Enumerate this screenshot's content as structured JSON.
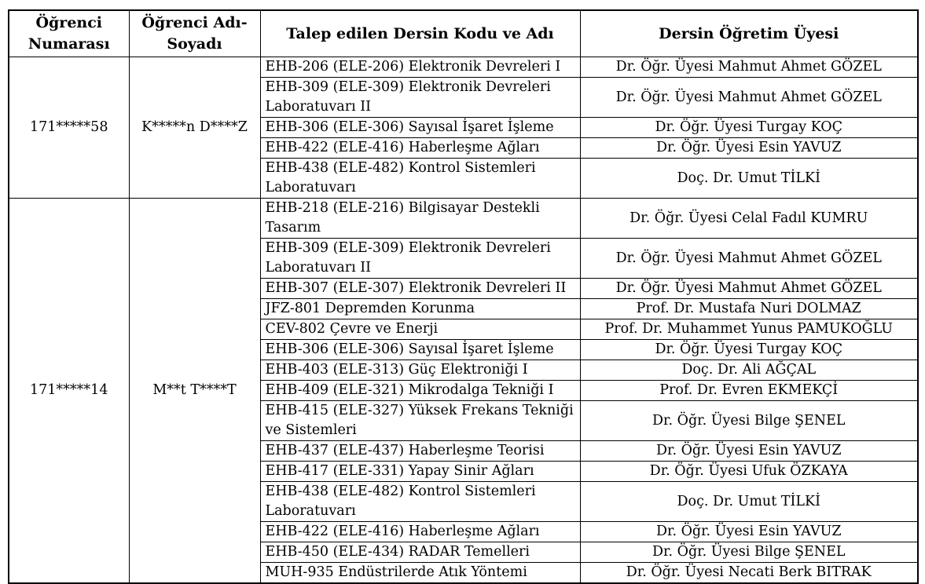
{
  "colors": {
    "border": "#000000",
    "text": "#000000",
    "background": "#ffffff"
  },
  "table": {
    "headers": [
      "Öğrenci Numarası",
      "Öğrenci Adı-Soyadı",
      "Talep edilen Dersin Kodu ve Adı",
      "Dersin Öğretim Üyesi"
    ],
    "students": [
      {
        "number": "171*****58",
        "name": "K*****n D****Z",
        "requests": [
          {
            "course": "EHB-206 (ELE-206) Elektronik Devreleri I",
            "instructor": "Dr. Öğr. Üyesi Mahmut Ahmet GÖZEL"
          },
          {
            "course": "EHB-309 (ELE-309) Elektronik Devreleri Laboratuvarı II",
            "instructor": "Dr. Öğr. Üyesi Mahmut Ahmet GÖZEL"
          },
          {
            "course": "EHB-306 (ELE-306) Sayısal İşaret İşleme",
            "instructor": "Dr. Öğr. Üyesi Turgay KOÇ"
          },
          {
            "course": "EHB-422 (ELE-416) Haberleşme Ağları",
            "instructor": "Dr. Öğr. Üyesi Esin YAVUZ"
          },
          {
            "course": "EHB-438 (ELE-482) Kontrol Sistemleri Laboratuvarı",
            "instructor": "Doç. Dr. Umut TİLKİ"
          }
        ]
      },
      {
        "number": "171*****14",
        "name": "M**t T****T",
        "requests": [
          {
            "course": "EHB-218 (ELE-216) Bilgisayar Destekli Tasarım",
            "instructor": "Dr. Öğr. Üyesi Celal Fadıl KUMRU"
          },
          {
            "course": "EHB-309 (ELE-309) Elektronik Devreleri Laboratuvarı II",
            "instructor": "Dr. Öğr. Üyesi Mahmut Ahmet GÖZEL"
          },
          {
            "course": "EHB-307 (ELE-307) Elektronik Devreleri II",
            "instructor": "Dr. Öğr. Üyesi Mahmut Ahmet GÖZEL"
          },
          {
            "course": "JFZ-801 Depremden Korunma",
            "instructor": "Prof. Dr. Mustafa Nuri DOLMAZ"
          },
          {
            "course": "CEV-802 Çevre ve Enerji",
            "instructor": "Prof. Dr. Muhammet Yunus PAMUKOĞLU"
          },
          {
            "course": "EHB-306 (ELE-306) Sayısal İşaret İşleme",
            "instructor": "Dr. Öğr. Üyesi Turgay KOÇ"
          },
          {
            "course": "EHB-403 (ELE-313) Güç Elektroniği I",
            "instructor": "Doç. Dr.  Ali AĞÇAL"
          },
          {
            "course": "EHB-409 (ELE-321) Mikrodalga Tekniği I",
            "instructor": "Prof. Dr. Evren EKMEKÇİ"
          },
          {
            "course": "EHB-415 (ELE-327) Yüksek Frekans Tekniği ve Sistemleri",
            "instructor": "Dr. Öğr. Üyesi Bilge ŞENEL"
          },
          {
            "course": "EHB-437 (ELE-437) Haberleşme Teorisi",
            "instructor": "Dr. Öğr. Üyesi Esin YAVUZ"
          },
          {
            "course": "EHB-417 (ELE-331) Yapay Sinir Ağları",
            "instructor": "Dr. Öğr. Üyesi Ufuk ÖZKAYA"
          },
          {
            "course": "EHB-438 (ELE-482) Kontrol Sistemleri Laboratuvarı",
            "instructor": "Doç. Dr. Umut TİLKİ"
          },
          {
            "course": "EHB-422 (ELE-416) Haberleşme Ağları",
            "instructor": "Dr. Öğr. Üyesi Esin YAVUZ"
          },
          {
            "course": "EHB-450 (ELE-434) RADAR Temelleri",
            "instructor": "Dr. Öğr. Üyesi Bilge ŞENEL"
          },
          {
            "course": "MUH-935 Endüstrilerde Atık Yöntemi",
            "instructor": "Dr. Öğr. Üyesi Necati Berk BITRAK"
          }
        ]
      }
    ]
  }
}
